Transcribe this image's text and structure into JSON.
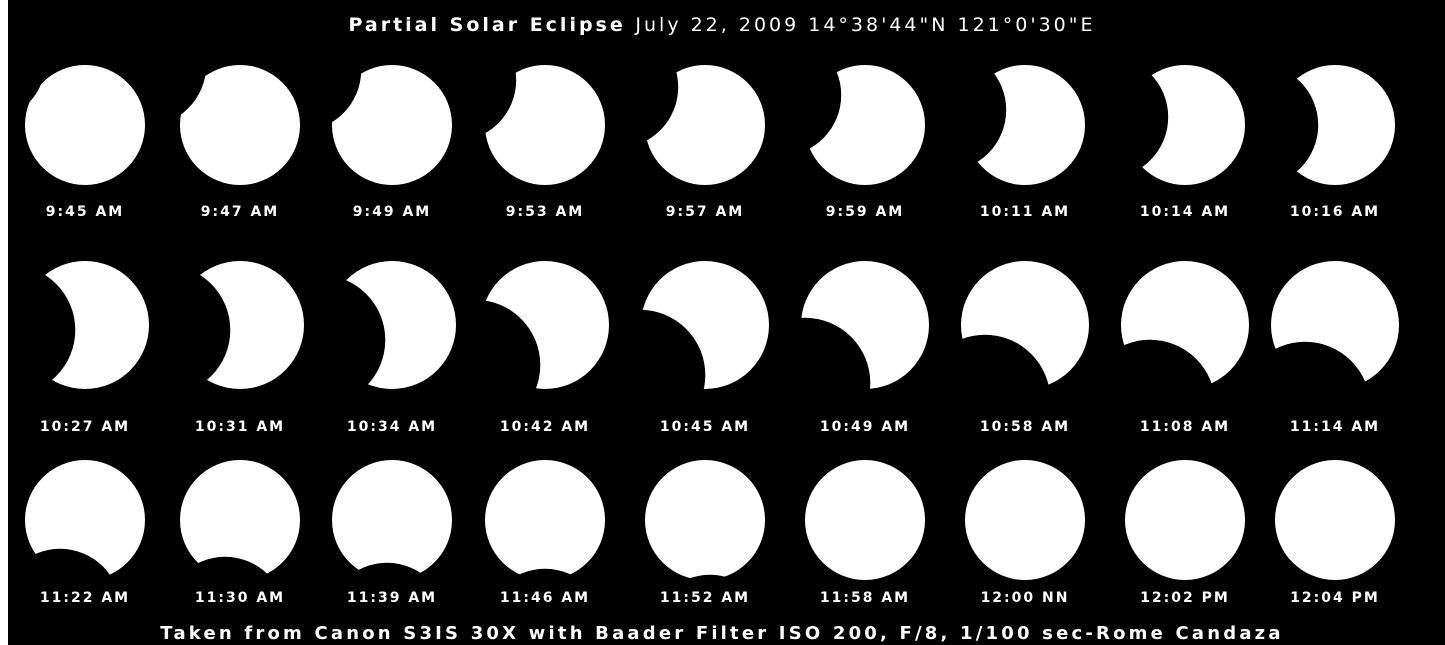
{
  "title": {
    "bold": "Partial Solar Eclipse",
    "rest": "July 22, 2009 14°38'44\"N 121°0'30\"E"
  },
  "frames": [
    {
      "label": "9:45 AM"
    },
    {
      "label": "9:47 AM"
    },
    {
      "label": "9:49 AM"
    },
    {
      "label": "9:53 AM"
    },
    {
      "label": "9:57 AM"
    },
    {
      "label": "9:59 AM"
    },
    {
      "label": "10:11 AM"
    },
    {
      "label": "10:14 AM"
    },
    {
      "label": "10:16 AM"
    },
    {
      "label": "10:27 AM"
    },
    {
      "label": "10:31 AM"
    },
    {
      "label": "10:34 AM"
    },
    {
      "label": "10:42 AM"
    },
    {
      "label": "10:45 AM"
    },
    {
      "label": "10:49 AM"
    },
    {
      "label": "10:58 AM"
    },
    {
      "label": "11:08 AM"
    },
    {
      "label": "11:14 AM"
    },
    {
      "label": "11:22 AM"
    },
    {
      "label": "11:30 AM"
    },
    {
      "label": "11:39 AM"
    },
    {
      "label": "11:46 AM"
    },
    {
      "label": "11:52 AM"
    },
    {
      "label": "11:58 AM"
    },
    {
      "label": "12:00 NN"
    },
    {
      "label": "12:02 PM"
    },
    {
      "label": "12:04 PM"
    }
  ],
  "footer": "Taken from Canon S3IS 30X with Baader Filter ISO 200, F/8, 1/100 sec-Rome Candaza"
}
